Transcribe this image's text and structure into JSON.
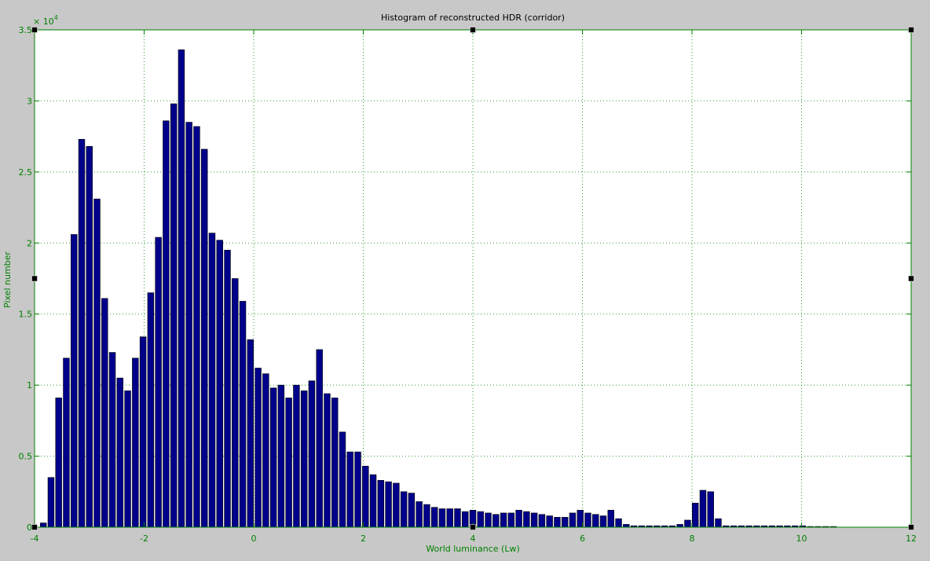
{
  "colors": {
    "figure_bg": "#c8c8c8",
    "axes_bg": "#ffffff",
    "axis": "#008000",
    "bar_fill": "#00008b",
    "bar_edge": "#000000",
    "handle": "#000000"
  },
  "chart_data": {
    "type": "bar",
    "title": "Histogram of reconstructed HDR (corridor)",
    "xlabel": "World luminance (Lw)",
    "ylabel": "Pixel number",
    "y_exponent_label": "× 10",
    "y_exponent_power": "4",
    "xlim": [
      -4,
      12
    ],
    "ylim": [
      0,
      3.5
    ],
    "x_ticks": [
      -4,
      -2,
      0,
      2,
      4,
      6,
      8,
      10,
      12
    ],
    "x_tick_labels": [
      "-4",
      "-2",
      "0",
      "2",
      "4",
      "6",
      "8",
      "10",
      "12"
    ],
    "y_ticks": [
      0,
      0.5,
      1,
      1.5,
      2,
      2.5,
      3,
      3.5
    ],
    "y_tick_labels": [
      "0",
      "0.5",
      "1",
      "1.5",
      "2",
      "2.5",
      "3",
      "3.5"
    ],
    "grid": true,
    "bin_width": 0.14,
    "x": [
      -3.84,
      -3.7,
      -3.56,
      -3.42,
      -3.28,
      -3.14,
      -3.0,
      -2.86,
      -2.72,
      -2.58,
      -2.44,
      -2.3,
      -2.16,
      -2.02,
      -1.88,
      -1.74,
      -1.6,
      -1.46,
      -1.32,
      -1.18,
      -1.04,
      -0.9,
      -0.76,
      -0.62,
      -0.48,
      -0.34,
      -0.2,
      -0.06,
      0.08,
      0.22,
      0.36,
      0.5,
      0.64,
      0.78,
      0.92,
      1.06,
      1.2,
      1.34,
      1.48,
      1.62,
      1.76,
      1.9,
      2.04,
      2.18,
      2.32,
      2.46,
      2.6,
      2.74,
      2.88,
      3.02,
      3.16,
      3.3,
      3.44,
      3.58,
      3.72,
      3.86,
      4.0,
      4.14,
      4.28,
      4.42,
      4.56,
      4.7,
      4.84,
      4.98,
      5.12,
      5.26,
      5.4,
      5.54,
      5.68,
      5.82,
      5.96,
      6.1,
      6.24,
      6.38,
      6.52,
      6.66,
      6.8,
      6.94,
      7.08,
      7.22,
      7.36,
      7.5,
      7.64,
      7.78,
      7.92,
      8.06,
      8.2,
      8.34,
      8.48,
      8.62,
      8.76,
      8.9,
      9.04,
      9.18,
      9.32,
      9.46,
      9.6,
      9.74,
      9.88,
      10.02,
      10.16,
      10.3,
      10.44,
      10.58
    ],
    "values": [
      0.03,
      0.35,
      0.91,
      1.19,
      2.06,
      2.73,
      2.68,
      2.31,
      1.61,
      1.23,
      1.05,
      0.96,
      1.19,
      1.34,
      1.65,
      2.04,
      2.86,
      2.98,
      3.36,
      2.85,
      2.82,
      2.66,
      2.07,
      2.02,
      1.95,
      1.75,
      1.59,
      1.32,
      1.12,
      1.08,
      0.98,
      1.0,
      0.91,
      1.0,
      0.96,
      1.03,
      1.25,
      0.94,
      0.91,
      0.67,
      0.53,
      0.53,
      0.43,
      0.37,
      0.33,
      0.32,
      0.31,
      0.25,
      0.24,
      0.18,
      0.16,
      0.14,
      0.13,
      0.13,
      0.13,
      0.11,
      0.12,
      0.11,
      0.1,
      0.09,
      0.1,
      0.1,
      0.12,
      0.11,
      0.1,
      0.09,
      0.08,
      0.07,
      0.07,
      0.1,
      0.12,
      0.1,
      0.09,
      0.08,
      0.12,
      0.06,
      0.02,
      0.01,
      0.01,
      0.01,
      0.01,
      0.01,
      0.01,
      0.02,
      0.05,
      0.17,
      0.26,
      0.25,
      0.06,
      0.01,
      0.01,
      0.01,
      0.01,
      0.01,
      0.01,
      0.01,
      0.01,
      0.01,
      0.01,
      0.01,
      0.005,
      0.005,
      0.005,
      0.005
    ]
  }
}
